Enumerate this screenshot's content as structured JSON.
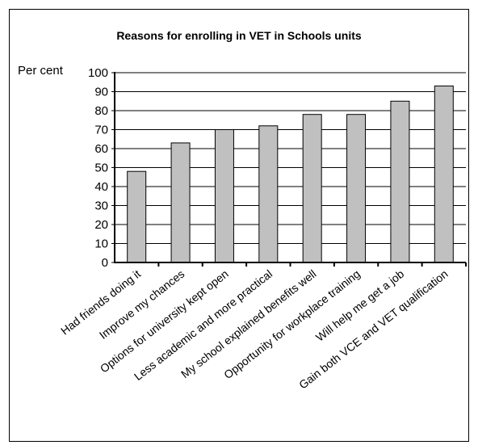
{
  "chart_data": {
    "type": "bar",
    "title": "Reasons for enrolling in VET in Schools units",
    "ylabel": "Per cent",
    "xlabel": "",
    "ylim": [
      0,
      100
    ],
    "yticks": [
      0,
      10,
      20,
      30,
      40,
      50,
      60,
      70,
      80,
      90,
      100
    ],
    "grid": true,
    "legend": "none",
    "categories": [
      "Had friends doing it",
      "Improve my chances",
      "Options for university kept open",
      "Less academic and more practical",
      "My school explained benefits well",
      "Opportunity for workplace training",
      "Will help me get a job",
      "Gain both VCE and VET qualification"
    ],
    "values": [
      48,
      63,
      70,
      72,
      78,
      78,
      85,
      93
    ],
    "colors": {
      "bar": "#c0c0c0",
      "outline": "#000000",
      "grid": "#000000"
    }
  }
}
